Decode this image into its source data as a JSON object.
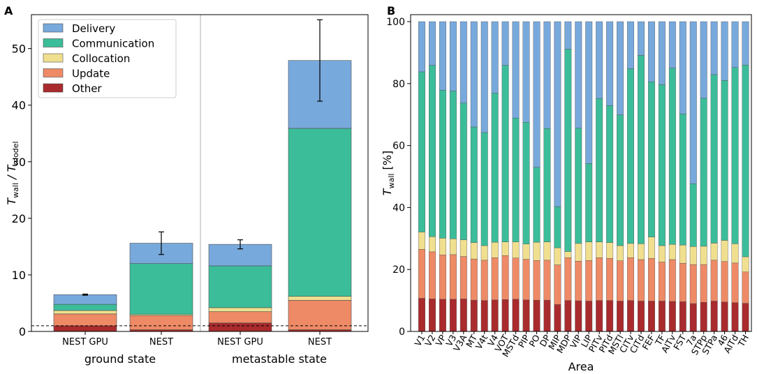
{
  "colors": {
    "Delivery": "#78a9dc",
    "Communication": "#3cbd9a",
    "Collocation": "#f0df8f",
    "Update": "#ee8a66",
    "Other": "#a92b2d",
    "edge": "#4d4d4d",
    "frame": "#000000",
    "separator": "#bbbbbb"
  },
  "chart_data": [
    {
      "panel": "A",
      "type": "bar",
      "stacked": true,
      "ylabel": "T_wall / T_model",
      "ylim": [
        0,
        56
      ],
      "yticks": [
        0,
        10,
        20,
        30,
        40,
        50
      ],
      "reference_line": 1,
      "legend": [
        "Delivery",
        "Communication",
        "Collocation",
        "Update",
        "Other"
      ],
      "legend_position": "top-left",
      "groups": [
        "ground state",
        "metastable state"
      ],
      "categories": [
        "NEST GPU",
        "NEST",
        "NEST GPU",
        "NEST"
      ],
      "category_groups": [
        0,
        0,
        1,
        1
      ],
      "series": [
        {
          "name": "Other",
          "values": [
            1.0,
            0.3,
            1.5,
            0.3
          ]
        },
        {
          "name": "Update",
          "values": [
            2.1,
            2.5,
            2.0,
            5.2
          ]
        },
        {
          "name": "Collocation",
          "values": [
            0.6,
            0.2,
            0.7,
            0.7
          ]
        },
        {
          "name": "Communication",
          "values": [
            1.1,
            9.0,
            7.4,
            29.7
          ]
        },
        {
          "name": "Delivery",
          "values": [
            1.7,
            3.6,
            3.8,
            12.0
          ]
        }
      ],
      "totals": [
        6.5,
        15.6,
        15.4,
        47.9
      ],
      "errors": [
        0.1,
        2.0,
        0.8,
        7.2
      ]
    },
    {
      "panel": "B",
      "type": "bar",
      "stacked": true,
      "xlabel": "Area",
      "ylabel": "T_wall [%]",
      "ylim": [
        0,
        100
      ],
      "yticks": [
        0,
        20,
        40,
        60,
        80,
        100
      ],
      "categories": [
        "V1",
        "V2",
        "VP",
        "V3",
        "V3A",
        "MT",
        "V4t",
        "V4",
        "VOT",
        "MSTd",
        "PIP",
        "PO",
        "DP",
        "MIP",
        "MDP",
        "VIP",
        "LIP",
        "PITv",
        "PITd",
        "MSTl",
        "CITv",
        "CITd",
        "FEF",
        "TF",
        "AITv",
        "FST",
        "7a",
        "STPp",
        "STPa",
        "46",
        "AITd",
        "TH"
      ],
      "series": [
        {
          "name": "Other",
          "values": [
            10.7,
            10.5,
            10.4,
            10.4,
            10.5,
            10.1,
            10.0,
            10.2,
            10.3,
            10.4,
            10.2,
            10.1,
            10.1,
            8.7,
            10.0,
            9.9,
            9.8,
            10.0,
            10.0,
            9.8,
            10.0,
            9.8,
            9.8,
            9.8,
            9.7,
            9.6,
            9.0,
            9.4,
            9.8,
            9.5,
            9.3,
            9.1
          ]
        },
        {
          "name": "Update",
          "values": [
            15.8,
            15.2,
            14.3,
            14.4,
            13.7,
            13.3,
            13.0,
            13.6,
            14.2,
            13.3,
            13.1,
            12.8,
            12.9,
            12.8,
            13.8,
            12.8,
            13.1,
            13.8,
            13.6,
            13.0,
            13.8,
            13.4,
            13.8,
            12.6,
            13.5,
            12.4,
            12.6,
            12.2,
            13.2,
            13.1,
            12.8,
            10.1
          ]
        },
        {
          "name": "Collocation",
          "values": [
            5.6,
            4.9,
            5.4,
            5.1,
            5.4,
            5.3,
            4.7,
            5.0,
            4.4,
            5.2,
            4.9,
            5.9,
            5.9,
            5.5,
            2.0,
            5.7,
            6.0,
            5.1,
            5.1,
            4.9,
            4.6,
            5.1,
            6.9,
            5.3,
            4.9,
            5.9,
            5.8,
            5.9,
            5.5,
            6.8,
            6.2,
            4.9
          ]
        },
        {
          "name": "Communication",
          "values": [
            51.7,
            55.3,
            47.8,
            47.7,
            44.1,
            37.3,
            36.5,
            48.1,
            57.0,
            40.0,
            39.3,
            24.2,
            36.6,
            13.3,
            65.3,
            37.2,
            25.3,
            46.3,
            44.2,
            42.2,
            56.4,
            60.8,
            50.1,
            52.0,
            56.9,
            42.3,
            20.3,
            47.8,
            54.4,
            51.6,
            56.9,
            61.9
          ]
        },
        {
          "name": "Delivery",
          "values": [
            16.2,
            14.1,
            22.1,
            22.4,
            26.3,
            34.0,
            35.8,
            23.1,
            14.1,
            31.1,
            32.5,
            47.0,
            34.5,
            59.7,
            8.9,
            34.4,
            45.8,
            24.8,
            27.1,
            30.1,
            15.2,
            10.9,
            19.4,
            20.3,
            15.0,
            29.8,
            52.3,
            24.7,
            17.1,
            19.0,
            14.8,
            14.0
          ]
        }
      ]
    }
  ],
  "panel_a": {
    "panel_letter": "A",
    "y_label_main": "T",
    "y_label_sub1": "wall",
    "y_label_div": " / T",
    "y_label_sub2": "model",
    "group_labels": [
      "ground state",
      "metastable state"
    ]
  },
  "panel_b": {
    "panel_letter": "B",
    "y_label_main": "T",
    "y_label_sub": "wall",
    "y_label_unit": " [%]",
    "x_label": "Area"
  }
}
